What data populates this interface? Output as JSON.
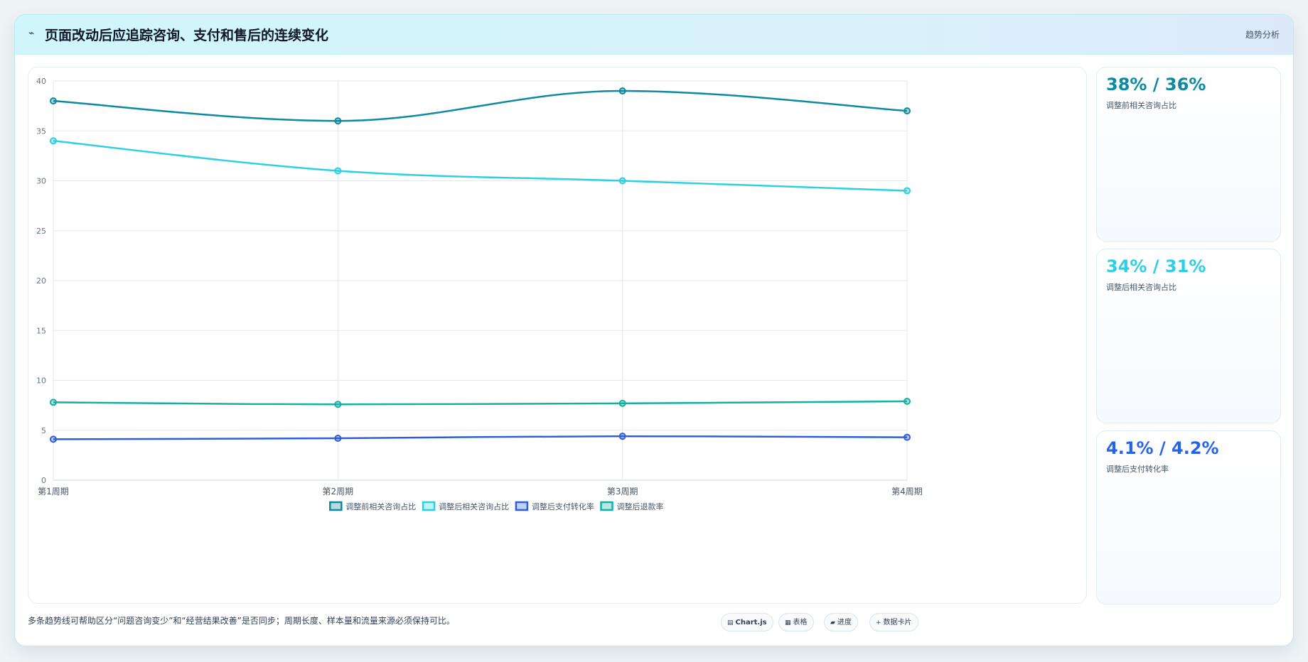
{
  "header": {
    "icon": "trend-line-icon",
    "icon_glyph": "⌁",
    "title": "页面改动后应追踪咨询、支付和售后的连续变化",
    "tag": "趋势分析"
  },
  "chart_data": {
    "type": "line",
    "categories": [
      "第1周期",
      "第2周期",
      "第3周期",
      "第4周期"
    ],
    "series": [
      {
        "name": "调整前相关咨询占比",
        "values": [
          38,
          36,
          39,
          37
        ],
        "color": "#0e8aa0"
      },
      {
        "name": "调整后相关咨询占比",
        "values": [
          34,
          31,
          30,
          29
        ],
        "color": "#2ecfe3"
      },
      {
        "name": "调整后支付转化率",
        "values": [
          4.1,
          4.2,
          4.4,
          4.3
        ],
        "color": "#2f5fd6"
      },
      {
        "name": "调整后退款率",
        "values": [
          7.8,
          7.6,
          7.7,
          7.9
        ],
        "color": "#16b0a0"
      }
    ],
    "ylim": [
      0,
      40
    ],
    "yticks": [
      "0",
      "5",
      "10",
      "15",
      "20",
      "25",
      "30",
      "35",
      "40"
    ],
    "grid": true,
    "legend_position": "bottom"
  },
  "stats": [
    {
      "value": "38% / 36%",
      "label": "调整前相关咨询占比",
      "color": "#0e8aa0"
    },
    {
      "value": "34% / 31%",
      "label": "调整后相关咨询占比",
      "color": "#2ecfe3"
    },
    {
      "value": "4.1% / 4.2%",
      "label": "调整后支付转化率",
      "color": "#2563eb"
    }
  ],
  "footer": {
    "note": "多条趋势线可帮助区分“问题咨询变少”和“经营结果改善”是否同步；周期长度、样本量和流量来源必须保持可比。",
    "pills": [
      {
        "icon": "chart-icon",
        "glyph": "▤",
        "label": "Chart.js"
      },
      {
        "icon": "table-icon",
        "glyph": "▦",
        "label": "表格"
      },
      {
        "icon": "progress-icon",
        "glyph": "▰",
        "label": "进度"
      },
      {
        "icon": "data-card-icon",
        "glyph": "+",
        "label": "数据卡片"
      }
    ]
  }
}
